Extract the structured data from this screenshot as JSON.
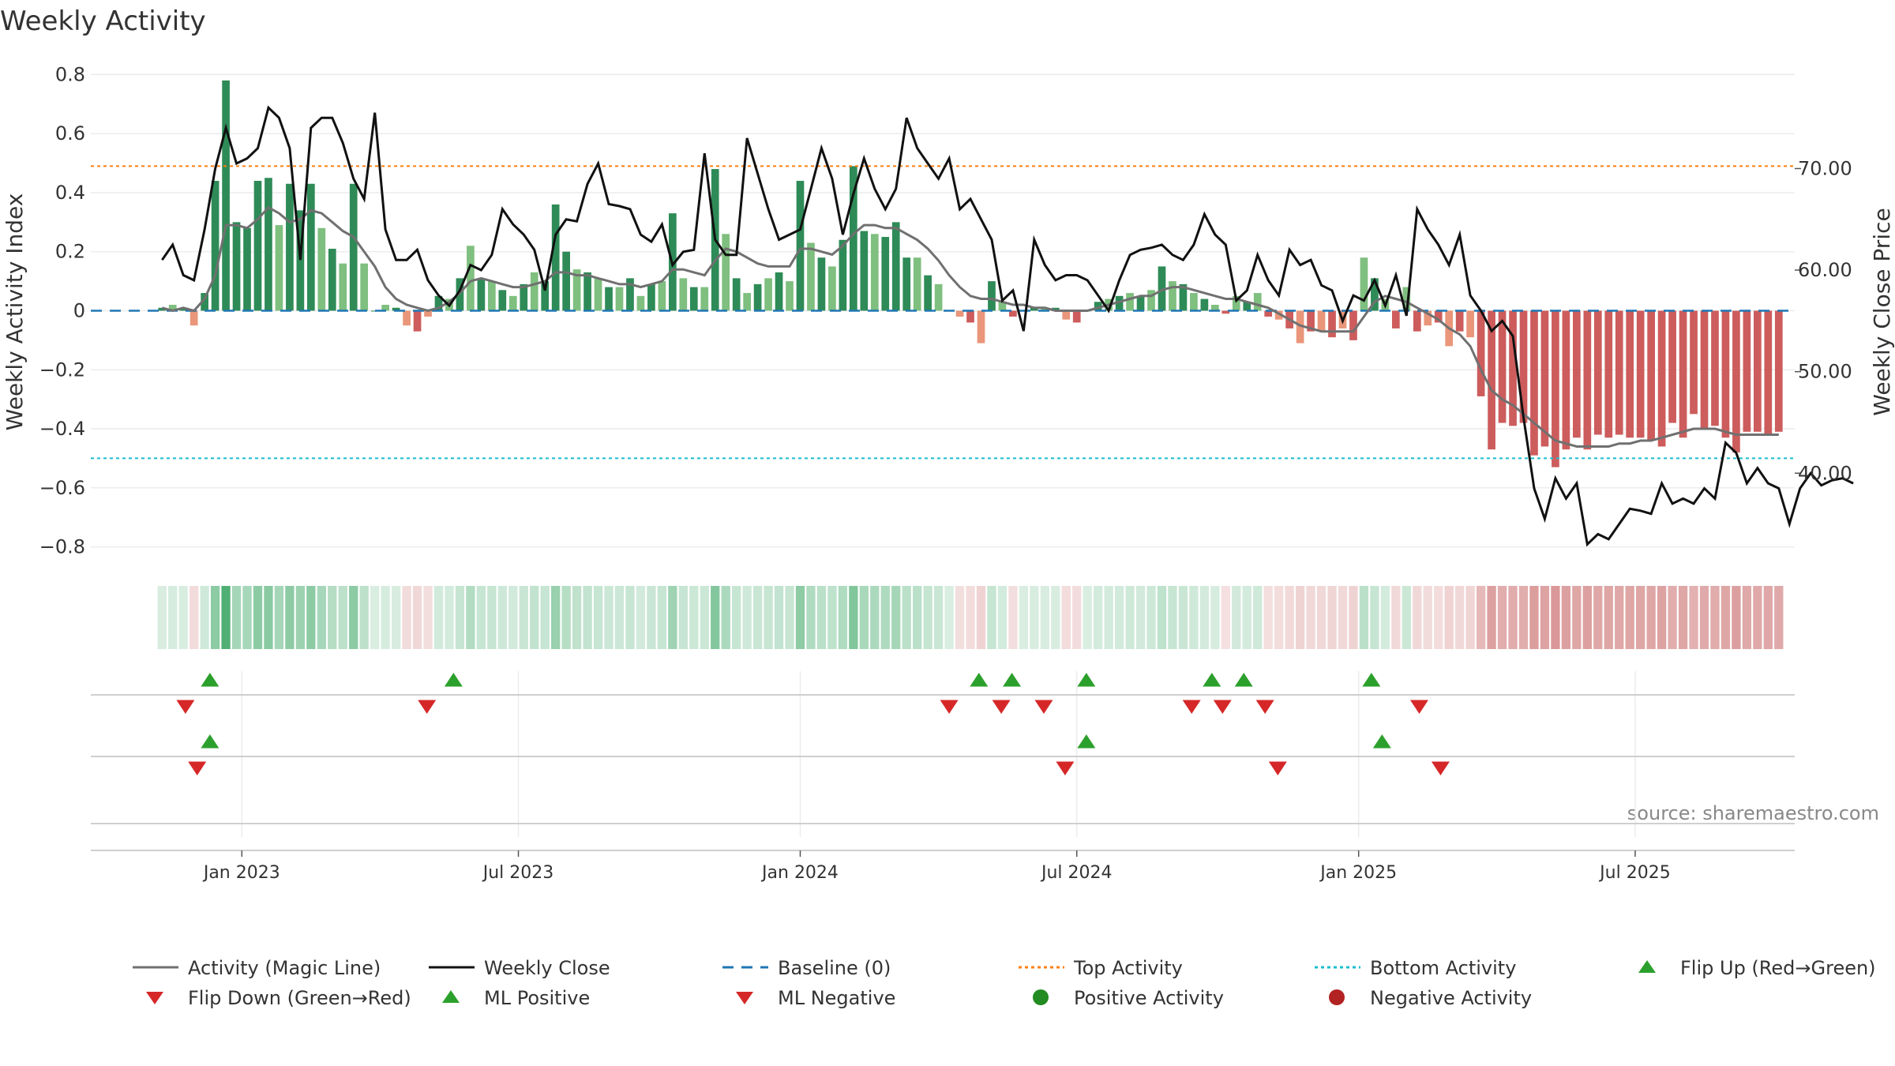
{
  "chart_data": {
    "type": "bar",
    "title": "Weekly Activity",
    "ylabel": "Weekly Activity Index",
    "ylabel_right": "Weekly Close Price",
    "ylim": [
      -0.86,
      0.86
    ],
    "ylim_right": [
      31.0,
      81.0
    ],
    "yticks": [
      "0.8",
      "0.6",
      "0.4",
      "0.2",
      "0",
      "−0.2",
      "−0.4",
      "−0.6",
      "−0.8"
    ],
    "ytick_values": [
      0.8,
      0.6,
      0.4,
      0.2,
      0,
      -0.2,
      -0.4,
      -0.6,
      -0.8
    ],
    "yticks_right": [
      "70.00",
      "60.00",
      "50.00",
      "40.00"
    ],
    "ytick_right_values": [
      70,
      60,
      50,
      40
    ],
    "x_range": [
      -6.7,
      153.5
    ],
    "xticks": [
      {
        "label": "Jan 2023",
        "week": 7.5
      },
      {
        "label": "Jul 2023",
        "week": 33.5
      },
      {
        "label": "Jan 2024",
        "week": 60.0
      },
      {
        "label": "Jul 2024",
        "week": 86.0
      },
      {
        "label": "Jan 2025",
        "week": 112.5
      },
      {
        "label": "Jul 2025",
        "week": 138.5
      }
    ],
    "top_activity": 0.49,
    "bottom_activity": -0.5,
    "activity": [
      0.01,
      0.02,
      0.01,
      -0.05,
      0.06,
      0.44,
      0.78,
      0.3,
      0.28,
      0.44,
      0.45,
      0.29,
      0.43,
      0.34,
      0.43,
      0.28,
      0.21,
      0.16,
      0.43,
      0.16,
      0.0,
      0.02,
      0.01,
      -0.05,
      -0.07,
      -0.02,
      0.05,
      0.04,
      0.11,
      0.22,
      0.11,
      0.1,
      0.07,
      0.05,
      0.09,
      0.13,
      0.1,
      0.36,
      0.2,
      0.14,
      0.13,
      0.11,
      0.08,
      0.08,
      0.11,
      0.05,
      0.09,
      0.1,
      0.33,
      0.11,
      0.08,
      0.08,
      0.48,
      0.26,
      0.11,
      0.06,
      0.09,
      0.11,
      0.13,
      0.1,
      0.44,
      0.23,
      0.18,
      0.15,
      0.24,
      0.49,
      0.27,
      0.26,
      0.25,
      0.3,
      0.18,
      0.18,
      0.12,
      0.09,
      0.0,
      -0.02,
      -0.04,
      -0.11,
      0.1,
      0.03,
      -0.02,
      0.0,
      0.01,
      0.01,
      0.01,
      -0.03,
      -0.04,
      0.0,
      0.03,
      0.04,
      0.05,
      0.06,
      0.05,
      0.07,
      0.15,
      0.1,
      0.09,
      0.06,
      0.04,
      0.02,
      -0.01,
      0.05,
      0.03,
      0.06,
      -0.02,
      -0.03,
      -0.06,
      -0.11,
      -0.07,
      -0.07,
      -0.09,
      -0.06,
      -0.1,
      0.18,
      0.11,
      0.04,
      -0.06,
      0.08,
      -0.07,
      -0.05,
      -0.04,
      -0.12,
      -0.07,
      -0.09,
      -0.29,
      -0.47,
      -0.38,
      -0.39,
      -0.38,
      -0.49,
      -0.46,
      -0.53,
      -0.47,
      -0.43,
      -0.47,
      -0.42,
      -0.43,
      -0.42,
      -0.43,
      -0.43,
      -0.44,
      -0.46,
      -0.38,
      -0.43,
      -0.35,
      -0.4,
      -0.39,
      -0.43,
      -0.48,
      -0.41,
      -0.41,
      -0.42,
      -0.41
    ],
    "magic_line": [
      0.01,
      0.0,
      0.01,
      0.0,
      0.04,
      0.12,
      0.29,
      0.29,
      0.28,
      0.31,
      0.35,
      0.33,
      0.3,
      0.31,
      0.34,
      0.33,
      0.3,
      0.27,
      0.25,
      0.2,
      0.15,
      0.08,
      0.04,
      0.02,
      0.01,
      0.0,
      0.01,
      0.03,
      0.06,
      0.1,
      0.11,
      0.1,
      0.09,
      0.08,
      0.08,
      0.09,
      0.1,
      0.13,
      0.13,
      0.12,
      0.12,
      0.11,
      0.1,
      0.09,
      0.09,
      0.08,
      0.09,
      0.1,
      0.14,
      0.14,
      0.13,
      0.12,
      0.17,
      0.21,
      0.2,
      0.18,
      0.16,
      0.15,
      0.15,
      0.15,
      0.21,
      0.21,
      0.2,
      0.19,
      0.22,
      0.26,
      0.29,
      0.29,
      0.28,
      0.28,
      0.26,
      0.24,
      0.21,
      0.17,
      0.12,
      0.08,
      0.05,
      0.04,
      0.04,
      0.03,
      0.02,
      0.02,
      0.01,
      0.01,
      0.0,
      0.0,
      0.0,
      0.0,
      0.01,
      0.02,
      0.03,
      0.04,
      0.05,
      0.05,
      0.07,
      0.08,
      0.08,
      0.07,
      0.06,
      0.05,
      0.04,
      0.04,
      0.03,
      0.02,
      0.01,
      -0.01,
      -0.03,
      -0.05,
      -0.06,
      -0.07,
      -0.07,
      -0.07,
      -0.07,
      -0.02,
      0.03,
      0.05,
      0.04,
      0.03,
      0.01,
      -0.01,
      -0.03,
      -0.06,
      -0.08,
      -0.12,
      -0.2,
      -0.27,
      -0.3,
      -0.32,
      -0.35,
      -0.38,
      -0.41,
      -0.44,
      -0.45,
      -0.46,
      -0.46,
      -0.46,
      -0.46,
      -0.45,
      -0.45,
      -0.44,
      -0.44,
      -0.43,
      -0.42,
      -0.41,
      -0.4,
      -0.4,
      -0.4,
      -0.41,
      -0.42,
      -0.42,
      -0.42,
      -0.42,
      -0.42
    ],
    "weekly_close": [
      61.0,
      62.5,
      59.5,
      59.0,
      64.0,
      70.0,
      74.0,
      70.5,
      71.0,
      72.0,
      76.0,
      75.0,
      72.0,
      61.0,
      74.0,
      75.0,
      75.0,
      72.5,
      69.0,
      67.0,
      75.5,
      64.0,
      61.0,
      61.0,
      62.0,
      59.0,
      57.5,
      56.5,
      58.0,
      60.5,
      60.0,
      61.5,
      66.0,
      64.5,
      63.5,
      62.0,
      58.0,
      63.5,
      65.0,
      64.8,
      68.5,
      70.5,
      66.5,
      66.3,
      66.0,
      63.5,
      62.8,
      64.5,
      60.5,
      61.8,
      62.0,
      71.5,
      63.0,
      61.5,
      61.5,
      73.0,
      69.5,
      66.0,
      63.0,
      63.5,
      64.0,
      68.0,
      72.0,
      69.0,
      63.5,
      67.5,
      71.0,
      68.0,
      66.0,
      68.0,
      75.0,
      72.0,
      70.5,
      69.0,
      71.0,
      66.0,
      67.0,
      65.0,
      63.0,
      57.0,
      58.0,
      54.0,
      63.0,
      60.5,
      59.0,
      59.5,
      59.5,
      59.0,
      57.5,
      56.0,
      59.0,
      61.5,
      62.0,
      62.2,
      62.5,
      61.5,
      61.0,
      62.5,
      65.5,
      63.5,
      62.5,
      57.0,
      58.0,
      61.5,
      59.0,
      57.5,
      62.0,
      60.5,
      61.0,
      58.5,
      58.0,
      55.0,
      57.5,
      57.0,
      59.0,
      56.5,
      59.5,
      55.5,
      66.0,
      64.0,
      62.5,
      60.5,
      63.5,
      57.5,
      56.0,
      54.0,
      55.0,
      53.5,
      45.5,
      38.5,
      35.5,
      39.5,
      37.5,
      39.0,
      33.0,
      34.0,
      33.5,
      35.0,
      36.5,
      36.3,
      36.0,
      39.0,
      37.0,
      37.5,
      37.0,
      38.5,
      37.5,
      43.0,
      42.0,
      39.0,
      40.5,
      39.0,
      38.5,
      35.0,
      38.5,
      40.0,
      38.8,
      39.3,
      39.5,
      39.0
    ],
    "flip_up": [
      4.5,
      27.4,
      76.8,
      79.9,
      86.9,
      98.7,
      101.7,
      113.7
    ],
    "flip_down": [
      2.2,
      24.9,
      74.0,
      78.9,
      82.9,
      96.8,
      99.7,
      103.7,
      118.2
    ],
    "ml_positive": [
      4.5,
      86.9,
      114.7
    ],
    "ml_negative": [
      3.3,
      84.9,
      104.9,
      120.2
    ],
    "colors": {
      "pos_dark": "#2e8b57",
      "pos_light": "#7fbf7f",
      "neg_dark": "#cd5c5c",
      "neg_light": "#e9967a",
      "magic_line": "#707070",
      "weekly_close": "#111111",
      "baseline": "#1f77b4",
      "top_activity": "#ff7f0e",
      "bottom_activity": "#17becf",
      "flip_up": "#2ca02c",
      "flip_down": "#d62728",
      "positive_activity": "#228b22",
      "negative_activity": "#b22222"
    }
  },
  "legend": [
    {
      "label": "Activity (Magic Line)",
      "symbol": "line-solid-gray"
    },
    {
      "label": "Weekly Close",
      "symbol": "line-solid-black"
    },
    {
      "label": "Baseline (0)",
      "symbol": "line-dashed-blue"
    },
    {
      "label": "Top Activity",
      "symbol": "line-dotted-orange"
    },
    {
      "label": "Bottom Activity",
      "symbol": "line-dotted-cyan"
    },
    {
      "label": "Flip Up (Red→Green)",
      "symbol": "triangle-up-green"
    },
    {
      "label": "Flip Down (Green→Red)",
      "symbol": "triangle-down-red"
    },
    {
      "label": "ML Positive",
      "symbol": "triangle-up-green"
    },
    {
      "label": "ML Negative",
      "symbol": "triangle-down-red"
    },
    {
      "label": "Positive Activity",
      "symbol": "circle-green"
    },
    {
      "label": "Negative Activity",
      "symbol": "circle-red"
    }
  ],
  "source": "source: sharemaestro.com"
}
